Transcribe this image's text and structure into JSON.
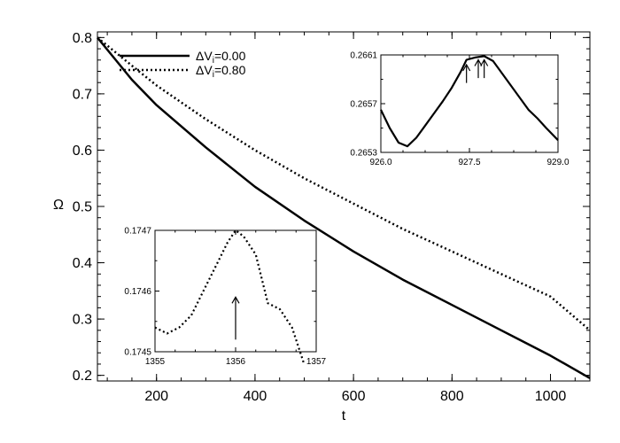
{
  "chart_data": [
    {
      "type": "line",
      "id": "main",
      "title": "",
      "xlabel": "t",
      "ylabel": "Ω",
      "xlim": [
        80,
        1080
      ],
      "ylim": [
        0.19,
        0.81
      ],
      "xticks": [
        200,
        400,
        600,
        800,
        1000
      ],
      "xtick_labels": [
        "200",
        "400",
        "600",
        "800",
        "1000"
      ],
      "yticks": [
        0.2,
        0.3,
        0.4,
        0.5,
        0.6,
        0.7,
        0.8
      ],
      "ytick_labels": [
        "0.2",
        "0.3",
        "0.4",
        "0.5",
        "0.6",
        "0.7",
        "0.8"
      ],
      "legend": [
        {
          "label": "ΔV",
          "subscript": "i",
          "value": "=0.00",
          "style": "solid"
        },
        {
          "label": "ΔV",
          "subscript": "i",
          "value": "=0.80",
          "style": "dotted"
        }
      ],
      "series": [
        {
          "name": "ΔVi=0.00",
          "style": "solid",
          "x": [
            80,
            150,
            200,
            300,
            400,
            500,
            600,
            700,
            800,
            900,
            1000,
            1080
          ],
          "y": [
            0.8,
            0.725,
            0.68,
            0.605,
            0.535,
            0.475,
            0.42,
            0.37,
            0.325,
            0.28,
            0.235,
            0.195
          ]
        },
        {
          "name": "ΔVi=0.80",
          "style": "dotted",
          "x": [
            80,
            150,
            200,
            300,
            400,
            500,
            600,
            700,
            800,
            900,
            1000,
            1080
          ],
          "y": [
            0.8,
            0.75,
            0.715,
            0.655,
            0.6,
            0.55,
            0.505,
            0.46,
            0.42,
            0.38,
            0.34,
            0.28
          ]
        }
      ]
    },
    {
      "type": "line",
      "id": "inset-top",
      "xlim": [
        926.0,
        929.0
      ],
      "ylim": [
        0.2653,
        0.2661
      ],
      "xticks": [
        926.0,
        927.5,
        929.0
      ],
      "xtick_labels": [
        "926.0",
        "927.5",
        "929.0"
      ],
      "yticks": [
        0.2653,
        0.2657,
        0.2661
      ],
      "ytick_labels": [
        "0.2653",
        "0.2657",
        "0.2661"
      ],
      "series": [
        {
          "name": "ΔVi=0.00",
          "style": "solid",
          "x": [
            926.0,
            926.15,
            926.3,
            926.45,
            926.6,
            926.75,
            926.9,
            927.05,
            927.2,
            927.35,
            927.45,
            927.6,
            927.75,
            927.9,
            928.05,
            928.2,
            928.35,
            928.5,
            928.65,
            928.8,
            929.0
          ],
          "y": [
            0.26565,
            0.2655,
            0.26538,
            0.26535,
            0.26542,
            0.26552,
            0.26562,
            0.26572,
            0.26583,
            0.26596,
            0.26606,
            0.26608,
            0.26609,
            0.26605,
            0.26595,
            0.26585,
            0.26575,
            0.26565,
            0.26558,
            0.2655,
            0.2654
          ]
        }
      ],
      "annotations": [
        {
          "type": "arrow",
          "x": 927.45,
          "y_from": 0.26587,
          "y_to": 0.26602
        },
        {
          "type": "arrow",
          "x": 927.65,
          "y_from": 0.26591,
          "y_to": 0.26606
        },
        {
          "type": "arrow",
          "x": 927.75,
          "y_from": 0.26591,
          "y_to": 0.26606
        }
      ]
    },
    {
      "type": "line",
      "id": "inset-bottom",
      "xlim": [
        1355,
        1357
      ],
      "ylim": [
        0.1745,
        0.1747
      ],
      "xticks": [
        1355,
        1356,
        1357
      ],
      "xtick_labels": [
        "1355",
        "1356",
        "1357"
      ],
      "yticks": [
        0.1745,
        0.1746,
        0.1747
      ],
      "ytick_labels": [
        "0.1745",
        "0.1746",
        "0.1747"
      ],
      "series": [
        {
          "name": "ΔVi=0.80",
          "style": "dotted",
          "x": [
            1355.0,
            1355.15,
            1355.3,
            1355.45,
            1355.6,
            1355.75,
            1355.9,
            1356.0,
            1356.1,
            1356.25,
            1356.4,
            1356.55,
            1356.7,
            1356.85
          ],
          "y": [
            0.17454,
            0.17453,
            0.17454,
            0.17456,
            0.1746,
            0.17464,
            0.17468,
            0.1747,
            0.17469,
            0.17466,
            0.17458,
            0.17457,
            0.17454,
            0.17448
          ]
        }
      ],
      "annotations": [
        {
          "type": "arrow",
          "x": 1356.0,
          "y_from": 0.17452,
          "y_to": 0.17459
        }
      ]
    }
  ]
}
